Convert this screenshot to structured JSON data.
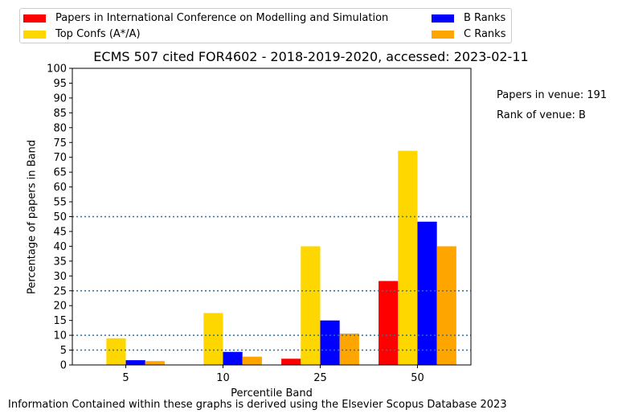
{
  "chart_data": {
    "type": "bar",
    "title": "ECMS 507 cited FOR4602 - 2018-2019-2020, accessed: 2023-02-11",
    "xlabel": "Percentile Band",
    "ylabel": "Percentage of papers in Band",
    "categories": [
      "5",
      "10",
      "25",
      "50"
    ],
    "ylim": [
      0,
      100
    ],
    "yticks": [
      0,
      5,
      10,
      15,
      20,
      25,
      30,
      35,
      40,
      45,
      50,
      55,
      60,
      65,
      70,
      75,
      80,
      85,
      90,
      95,
      100
    ],
    "reference_lines": [
      5,
      10,
      25,
      50
    ],
    "legend_placement": "top",
    "series": [
      {
        "name": "Papers in International Conference on Modelling and Simulation",
        "color": "#ff0000",
        "values": [
          0,
          0,
          2.1,
          28.3
        ]
      },
      {
        "name": "Top Confs (A*/A)",
        "color": "#ffd700",
        "values": [
          9.0,
          17.5,
          40.0,
          72.2
        ]
      },
      {
        "name": "B Ranks",
        "color": "#0000ff",
        "values": [
          1.6,
          4.4,
          15.0,
          48.3
        ]
      },
      {
        "name": "C Ranks",
        "color": "#ffa500",
        "values": [
          1.3,
          2.8,
          10.6,
          40.0
        ]
      }
    ]
  },
  "annotations": {
    "papers_in_venue": "Papers in venue: 191",
    "rank_of_venue": "Rank of venue: B"
  },
  "footer": "Information Contained within these graphs is derived using the Elsevier Scopus Database 2023"
}
